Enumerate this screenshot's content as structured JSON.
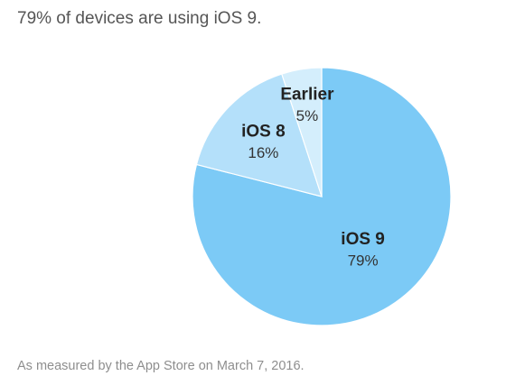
{
  "headline": "79% of devices are using iOS 9.",
  "footnote": "As measured by the App Store on March 7, 2016.",
  "chart_data": {
    "type": "pie",
    "title": "79% of devices are using iOS 9.",
    "slices": [
      {
        "name": "iOS 9",
        "value": 79,
        "label": "79%",
        "color": "#7ccaf6"
      },
      {
        "name": "iOS 8",
        "value": 16,
        "label": "16%",
        "color": "#b4e0fa"
      },
      {
        "name": "Earlier",
        "value": 5,
        "label": "5%",
        "color": "#d4eefc"
      }
    ],
    "start": "12 o'clock",
    "direction": "clockwise",
    "legend": "none",
    "slice_border_color": "#ffffff"
  }
}
